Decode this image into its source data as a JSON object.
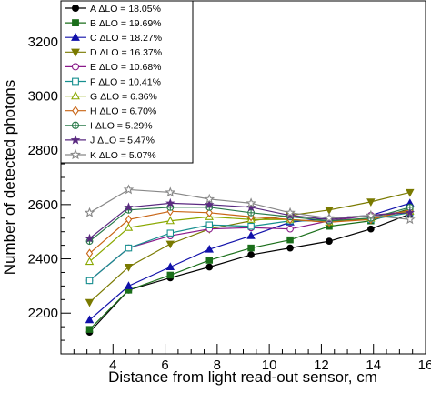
{
  "chart_data": {
    "type": "line",
    "xlabel": "Distance from light read-out sensor, cm",
    "ylabel": "Number of detected photons",
    "xlim": [
      2,
      16
    ],
    "ylim": [
      2050,
      3350
    ],
    "x_ticks": [
      4,
      6,
      8,
      10,
      12,
      14,
      16
    ],
    "y_ticks": [
      2200,
      2400,
      2600,
      2800,
      3000,
      3200
    ],
    "grid": false,
    "legend_position": "top-left",
    "x": [
      3.1,
      4.6,
      6.2,
      7.7,
      9.3,
      10.8,
      12.3,
      13.9,
      15.4
    ],
    "series": [
      {
        "name": "A ΔLO = 18.05%",
        "color": "#000000",
        "marker": "circle-filled",
        "values": [
          2130,
          2285,
          2330,
          2370,
          2415,
          2440,
          2465,
          2510,
          2565
        ]
      },
      {
        "name": "B ΔLO = 19.69%",
        "color": "#1a6e1a",
        "marker": "square-filled",
        "values": [
          2140,
          2285,
          2340,
          2395,
          2440,
          2470,
          2520,
          2540,
          2585
        ]
      },
      {
        "name": "C ΔLO = 18.27%",
        "color": "#1111aa",
        "marker": "triangle-up-filled",
        "values": [
          2175,
          2300,
          2370,
          2435,
          2485,
          2535,
          2550,
          2560,
          2605
        ]
      },
      {
        "name": "D ΔLO = 16.37%",
        "color": "#7a7a00",
        "marker": "triangle-down-filled",
        "values": [
          2240,
          2370,
          2455,
          2510,
          2540,
          2560,
          2580,
          2610,
          2645
        ]
      },
      {
        "name": "E ΔLO = 10.68%",
        "color": "#8a1a8a",
        "marker": "circle-open",
        "values": [
          2320,
          2440,
          2485,
          2510,
          2515,
          2510,
          2540,
          2560,
          2575
        ]
      },
      {
        "name": "F ΔLO = 10.41%",
        "color": "#168f8f",
        "marker": "square-open",
        "values": [
          2320,
          2440,
          2495,
          2525,
          2520,
          2540,
          2540,
          2545,
          2570
        ]
      },
      {
        "name": "G ΔLO = 6.36%",
        "color": "#8aa800",
        "marker": "triangle-up-open",
        "values": [
          2390,
          2515,
          2540,
          2555,
          2545,
          2545,
          2535,
          2550,
          2575
        ]
      },
      {
        "name": "H ΔLO = 6.70%",
        "color": "#c86414",
        "marker": "diamond-open",
        "values": [
          2420,
          2545,
          2575,
          2570,
          2555,
          2545,
          2535,
          2545,
          2580
        ]
      },
      {
        "name": "I ΔLO = 5.29%",
        "color": "#2a7a4a",
        "marker": "cross-circle-open",
        "values": [
          2465,
          2580,
          2590,
          2590,
          2570,
          2555,
          2540,
          2550,
          2590
        ]
      },
      {
        "name": "J ΔLO = 5.47%",
        "color": "#5a2a80",
        "marker": "star-filled",
        "values": [
          2475,
          2590,
          2605,
          2600,
          2590,
          2560,
          2545,
          2560,
          2570
        ]
      },
      {
        "name": "K ΔLO = 5.07%",
        "color": "#888888",
        "marker": "star-open",
        "values": [
          2570,
          2655,
          2645,
          2620,
          2605,
          2570,
          2550,
          2560,
          2545
        ]
      }
    ]
  }
}
